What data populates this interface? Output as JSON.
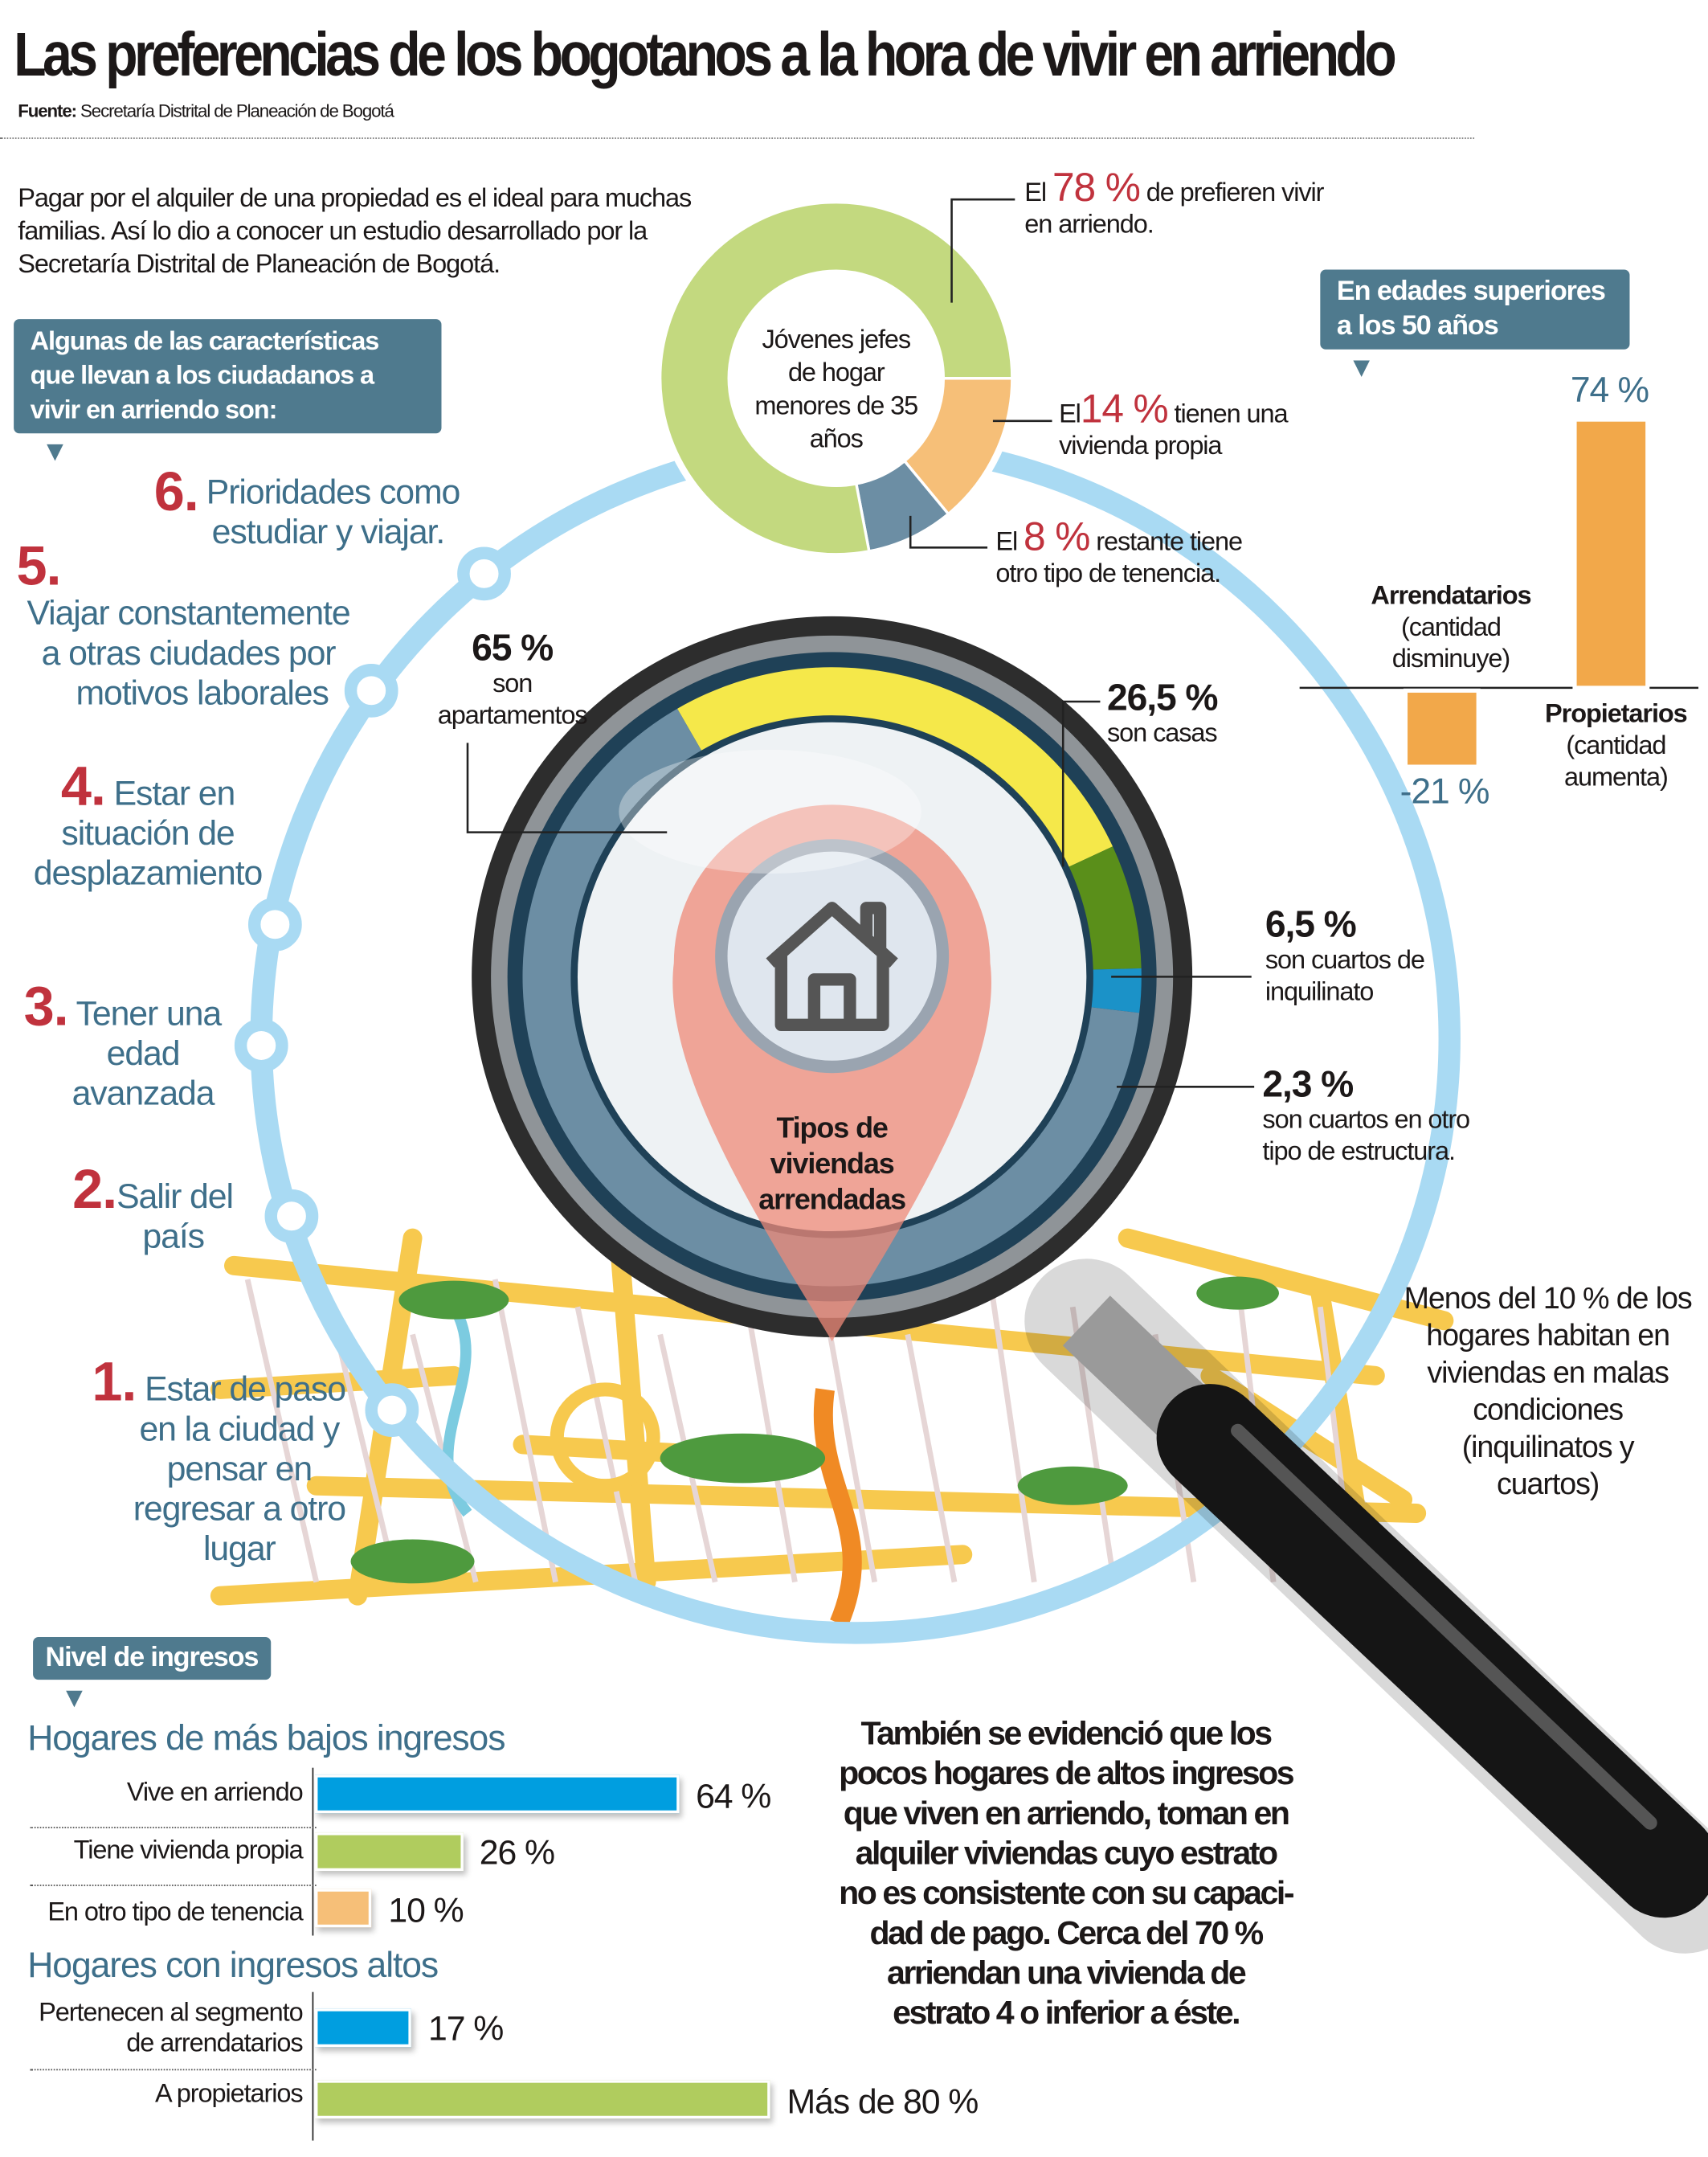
{
  "title": "Las preferencias de los bogotanos a la hora de vivir en arriendo",
  "source": {
    "label": "Fuente:",
    "text": "Secretaría Distrital de Planeación de Bogotá"
  },
  "intro": "Pagar por el alquiler de una propiedad es el ideal para muchas familias. Así lo dio a conocer un estudio desarrollado por la Secretaría Distrital de Planeación de Bogotá.",
  "characteristics": {
    "heading": [
      "Algunas de las características",
      "que llevan a los ciudadanos a",
      "vivir en arriendo son:"
    ],
    "items": [
      {
        "n": "6.",
        "lines": [
          "Prioridades como",
          "estudiar y viajar."
        ]
      },
      {
        "n": "5.",
        "lines": [
          "Viajar constantemente",
          "a otras ciudades por",
          "motivos laborales"
        ]
      },
      {
        "n": "4.",
        "lines": [
          "Estar en",
          "situación de",
          "desplazamiento"
        ]
      },
      {
        "n": "3.",
        "lines": [
          "Tener una",
          "edad",
          "avanzada"
        ]
      },
      {
        "n": "2.",
        "lines": [
          "Salir del",
          "país"
        ]
      },
      {
        "n": "1.",
        "lines": [
          "Estar de paso",
          "en la ciudad y",
          "pensar en",
          "regresar a otro",
          "lugar"
        ]
      }
    ]
  },
  "young": {
    "center": [
      "Jóvenes jefes",
      "de hogar",
      "menores de 35",
      "años"
    ],
    "l78": {
      "pre": "El",
      "pct": "78 %",
      "post": "de prefieren vivir",
      "line2": "en arriendo."
    },
    "l14": {
      "pre": "El",
      "pct": "14 %",
      "post": "tienen una",
      "line2": "vivienda propia"
    },
    "l8": {
      "pre": "El",
      "pct": "8 %",
      "post": "restante tiene",
      "line2": "otro tipo de tenencia."
    }
  },
  "types": {
    "center": [
      "Tipos de",
      "viviendas",
      "arrendadas"
    ],
    "apt": {
      "pct": "65 %",
      "lines": [
        "son",
        "apartamentos"
      ]
    },
    "casas": {
      "pct": "26,5 %",
      "lines": [
        "son casas"
      ]
    },
    "inq": {
      "pct": "6,5 %",
      "lines": [
        "son cuartos de",
        "inquilinato"
      ]
    },
    "otro": {
      "pct": "2,3 %",
      "lines": [
        "son cuartos en otro",
        "tipo de estructura."
      ]
    }
  },
  "age50": {
    "heading": [
      "En edades superiores",
      "a los 50 años"
    ],
    "prop": {
      "val": "74 %",
      "lines": [
        "Propietarios",
        "(cantidad",
        "aumenta)"
      ]
    },
    "arr": {
      "val": "-21 %",
      "lines": [
        "Arrendatarios",
        "(cantidad",
        "disminuye)"
      ]
    }
  },
  "note": [
    "Menos del 10 % de los",
    "hogares habitan en",
    "viviendas en malas",
    "condiciones",
    "(inquilinatos y",
    "cuartos)"
  ],
  "income": {
    "heading": "Nivel de ingresos",
    "low_title": "Hogares de más bajos ingresos",
    "high_title": "Hogares con ingresos altos",
    "rows": [
      {
        "label": [
          "Vive en arriendo"
        ],
        "val": "64 %"
      },
      {
        "label": [
          "Tiene vivienda propia"
        ],
        "val": "26 %"
      },
      {
        "label": [
          "En otro tipo de tenencia"
        ],
        "val": "10 %"
      },
      {
        "label": [
          "Pertenecen al segmento",
          "de arrendatarios"
        ],
        "val": "17 %"
      },
      {
        "label": [
          "A propietarios"
        ],
        "val": "Más de 80 %"
      }
    ]
  },
  "conclusion": [
    "También se evidenció que los",
    "pocos hogares de altos ingresos",
    "que viven en arriendo, toman en",
    "alquiler viviendas cuyo estrato",
    "no es consistente con su capaci-",
    "dad de pago. Cerca del 70 %",
    "arriendan una vivienda de",
    "estrato 4 o inferior a éste."
  ],
  "colors": {
    "green": "#c3d97f",
    "orange": "#f6bf78",
    "slate": "#6c8ea4",
    "yellow": "#f5e84a",
    "darkgreen": "#5a8f1a",
    "cyan": "#1b92c8",
    "barBlue": "#009ee0",
    "barGreen": "#b0cc5e",
    "barOrange": "#f6bf78",
    "ageOrange": "#f2a84a",
    "ring": "#a9daf3",
    "red": "#c0323d"
  },
  "chart_data": [
    {
      "type": "pie",
      "title": "Jóvenes jefes de hogar menores de 35 años",
      "categories": [
        "Prefieren vivir en arriendo",
        "Tienen vivienda propia",
        "Otro tipo de tenencia"
      ],
      "values": [
        78,
        14,
        8
      ]
    },
    {
      "type": "pie",
      "title": "Tipos de viviendas arrendadas",
      "categories": [
        "Apartamentos",
        "Casas",
        "Cuartos de inquilinato",
        "Cuartos en otro tipo de estructura"
      ],
      "values": [
        65,
        26.5,
        6.5,
        2.3
      ]
    },
    {
      "type": "bar",
      "title": "En edades superiores a los 50 años",
      "categories": [
        "Arrendatarios",
        "Propietarios"
      ],
      "values": [
        -21,
        74
      ]
    },
    {
      "type": "bar",
      "title": "Nivel de ingresos",
      "categories": [
        "Vive en arriendo",
        "Tiene vivienda propia",
        "En otro tipo de tenencia",
        "Pertenecen al segmento de arrendatarios",
        "A propietarios"
      ],
      "values": [
        64,
        26,
        10,
        17,
        80
      ]
    }
  ]
}
